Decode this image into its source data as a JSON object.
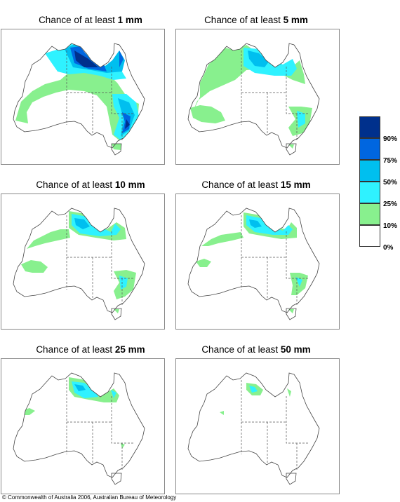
{
  "panels": [
    {
      "title_prefix": "Chance of at least ",
      "threshold": "1 mm"
    },
    {
      "title_prefix": "Chance of at least ",
      "threshold": "5 mm"
    },
    {
      "title_prefix": "Chance of at least ",
      "threshold": "10 mm"
    },
    {
      "title_prefix": "Chance of at least ",
      "threshold": "15 mm"
    },
    {
      "title_prefix": "Chance of at least ",
      "threshold": "25 mm"
    },
    {
      "title_prefix": "Chance of at least ",
      "threshold": "50 mm"
    }
  ],
  "legend": {
    "labels": [
      "90%",
      "75%",
      "50%",
      "25%",
      "10%",
      "0%"
    ],
    "colors": [
      "#00308c",
      "#0066e0",
      "#00bfef",
      "#2ff2ff",
      "#88f08e",
      "#ffffff"
    ]
  },
  "copyright": "© Commonwealth of Australia 2006, Australian Bureau of Meteorology"
}
